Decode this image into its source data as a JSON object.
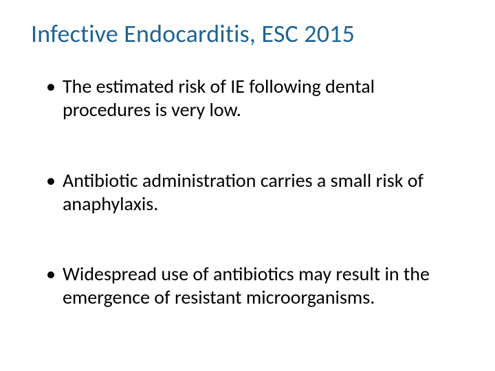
{
  "slide": {
    "title": "Infective Endocarditis, ESC 2015",
    "title_color": "#1f6493",
    "body_color": "#000000",
    "background_color": "#ffffff",
    "title_fontsize": 36,
    "body_fontsize": 28,
    "bullets": [
      "The estimated risk of IE following dental procedures is very low.",
      "Antibiotic administration carries a small risk of anaphylaxis.",
      "Widespread use of antibiotics may result in the emergence of resistant microorganisms."
    ]
  }
}
